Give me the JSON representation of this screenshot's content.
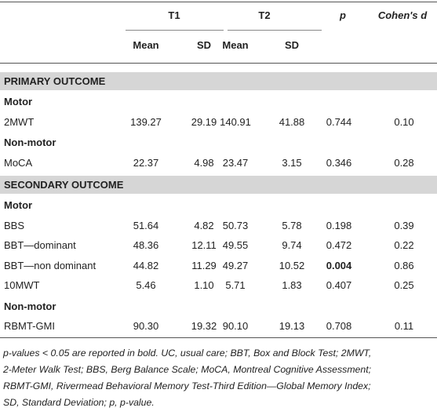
{
  "table": {
    "header_groups": [
      "T1",
      "T2",
      "p",
      "Cohen's d"
    ],
    "subheaders": [
      "Mean",
      "SD",
      "Mean",
      "SD"
    ],
    "sections": [
      {
        "title": "PRIMARY OUTCOME",
        "groups": [
          {
            "title": "Motor",
            "rows": [
              {
                "label": "2MWT",
                "cells": [
                  "139.27",
                  "29.19",
                  "140.91",
                  "41.88",
                  "0.744",
                  "0.10"
                ]
              }
            ]
          },
          {
            "title": "Non-motor",
            "rows": [
              {
                "label": "MoCA",
                "cells": [
                  "22.37",
                  "4.98",
                  "23.47",
                  "3.15",
                  "0.346",
                  "0.28"
                ]
              }
            ]
          }
        ]
      },
      {
        "title": "SECONDARY OUTCOME",
        "groups": [
          {
            "title": "Motor",
            "rows": [
              {
                "label": "BBS",
                "cells": [
                  "51.64",
                  "4.82",
                  "50.73",
                  "5.78",
                  "0.198",
                  "0.39"
                ]
              },
              {
                "label": "BBT—dominant",
                "cells": [
                  "48.36",
                  "12.11",
                  "49.55",
                  "9.74",
                  "0.472",
                  "0.22"
                ]
              },
              {
                "label": "BBT—non dominant",
                "cells": [
                  "44.82",
                  "11.29",
                  "49.27",
                  "10.52",
                  "0.004",
                  "0.86"
                ],
                "bold_columns": [
                  4
                ]
              },
              {
                "label": "10MWT",
                "cells": [
                  "5.46",
                  "1.10",
                  "5.71",
                  "1.83",
                  "0.407",
                  "0.25"
                ]
              }
            ]
          },
          {
            "title": "Non-motor",
            "rows": [
              {
                "label": "RBMT-GMI",
                "cells": [
                  "90.30",
                  "19.32",
                  "90.10",
                  "19.13",
                  "0.708",
                  "0.11"
                ]
              }
            ]
          }
        ]
      }
    ]
  },
  "footnote": {
    "lines": [
      "p-values < 0.05 are reported in bold. UC, usual care; BBT, Box and Block Test; 2MWT,",
      "2-Meter Walk Test; BBS, Berg Balance Scale; MoCA, Montreal Cognitive Assessment;",
      "RBMT-GMI, Rivermead Behavioral Memory Test-Third Edition—Global Memory Index;",
      "SD, Standard Deviation; p, p-value."
    ]
  }
}
